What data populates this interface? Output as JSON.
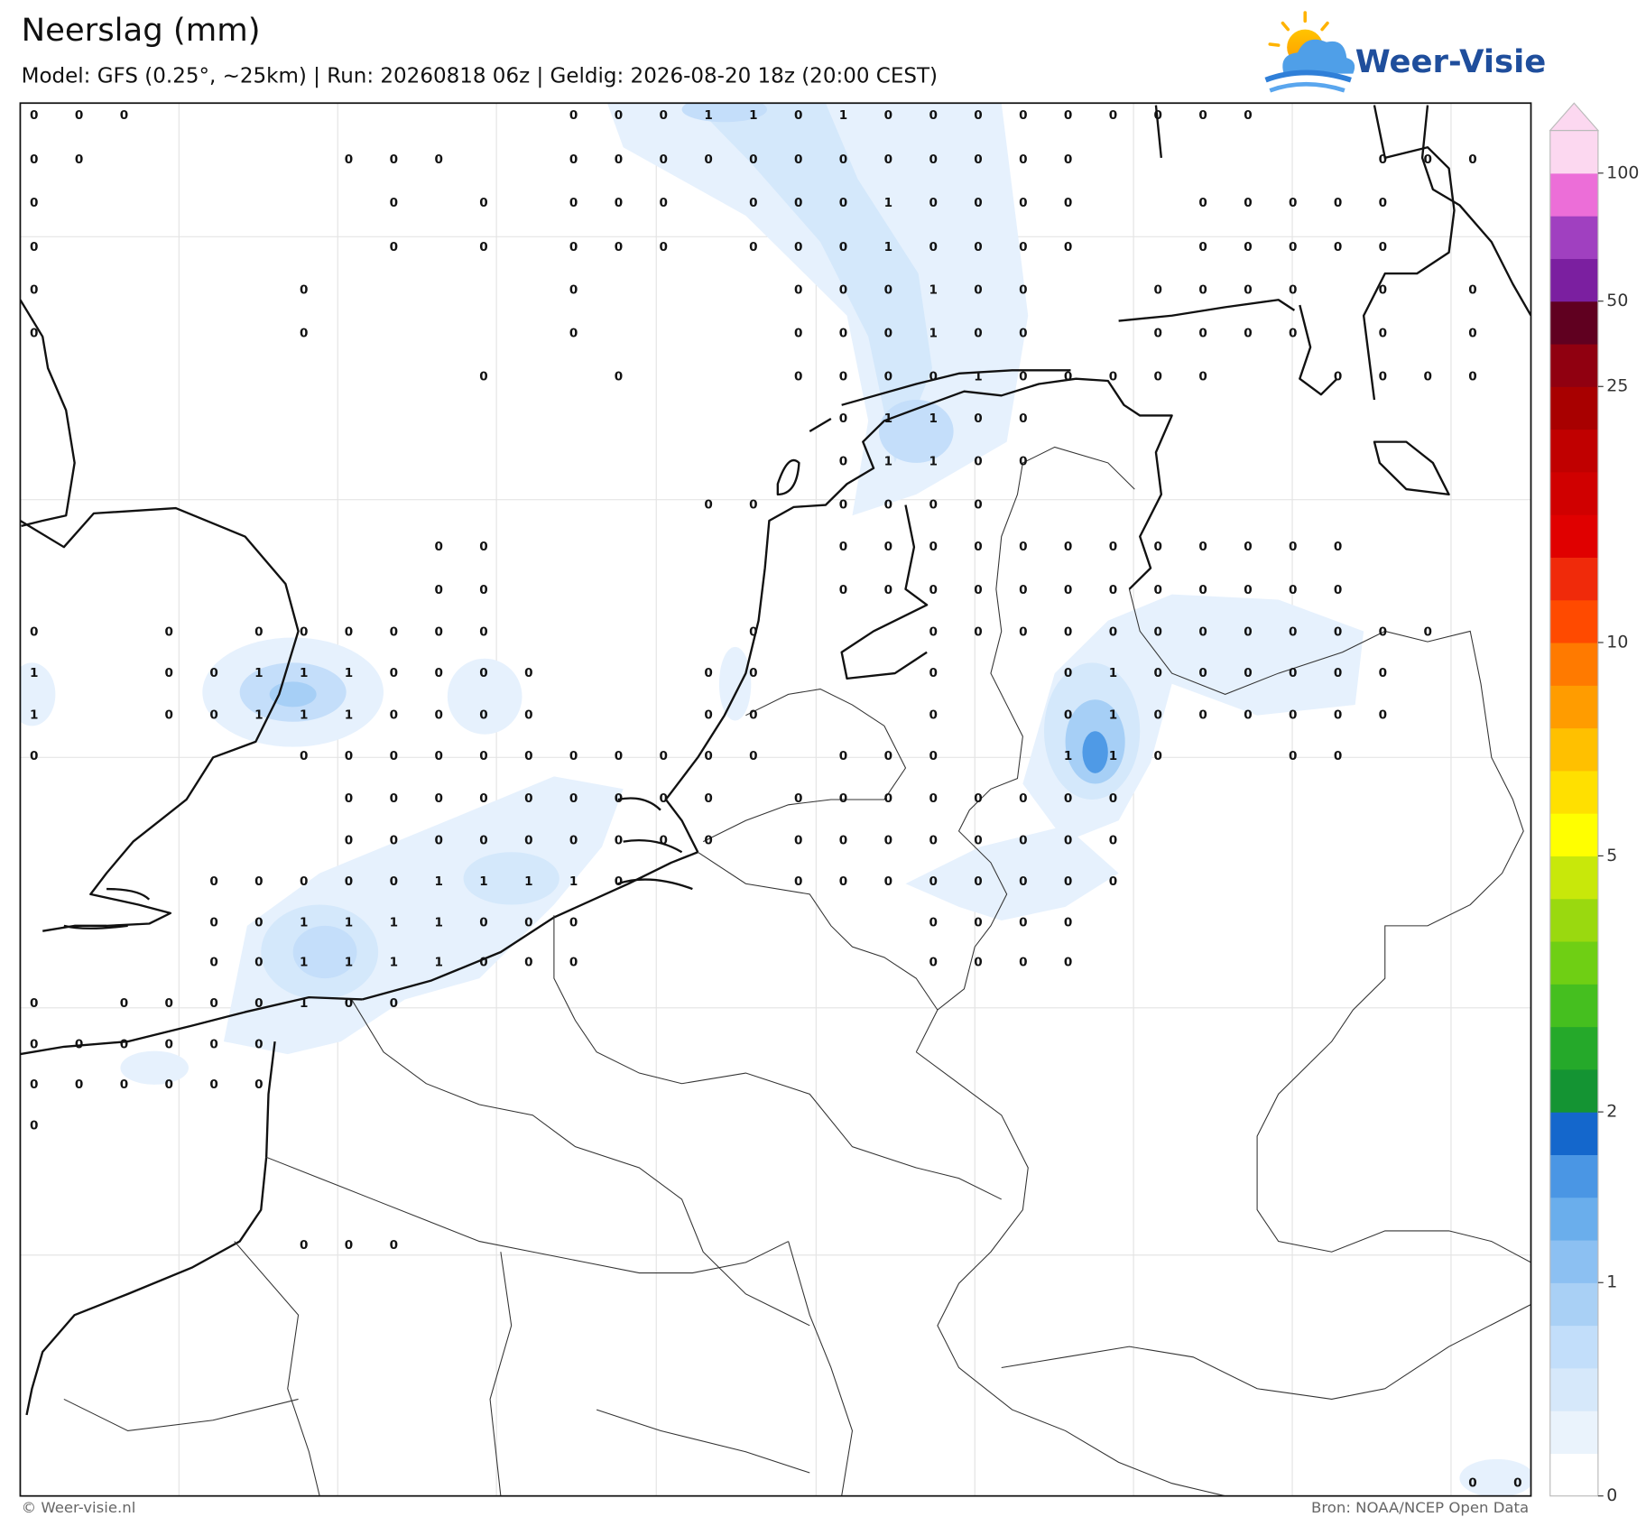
{
  "header": {
    "title": "Neerslag (mm)",
    "subtitle": "Model: GFS (0.25°, ~25km)  |  Run: 20260818 06z  |  Geldig: 2026-08-20 18z (20:00 CEST)",
    "logo": "Weer-Visie"
  },
  "legend": {
    "ticks": [
      0,
      1,
      2,
      5,
      10,
      25,
      50,
      100
    ]
  },
  "grid": {
    "rows": [
      [
        0,
        0,
        0,
        null,
        null,
        null,
        null,
        null,
        null,
        null,
        null,
        null,
        0,
        0,
        0,
        1,
        1,
        0,
        1,
        0,
        0,
        0,
        0,
        0,
        0,
        0,
        0,
        0,
        null,
        null,
        null,
        null,
        null,
        null
      ],
      [
        0,
        0,
        null,
        null,
        null,
        null,
        null,
        0,
        0,
        0,
        null,
        null,
        0,
        0,
        0,
        0,
        0,
        0,
        0,
        0,
        0,
        0,
        0,
        0,
        null,
        null,
        null,
        null,
        null,
        null,
        0,
        0,
        0,
        null
      ],
      [
        0,
        null,
        null,
        null,
        null,
        null,
        null,
        null,
        0,
        null,
        0,
        null,
        0,
        0,
        0,
        null,
        0,
        0,
        0,
        1,
        0,
        0,
        0,
        0,
        null,
        null,
        0,
        0,
        0,
        0,
        0,
        null,
        null,
        null
      ],
      [
        0,
        null,
        null,
        null,
        null,
        null,
        null,
        null,
        0,
        null,
        0,
        null,
        0,
        0,
        0,
        null,
        0,
        0,
        0,
        1,
        0,
        0,
        0,
        0,
        null,
        null,
        0,
        0,
        0,
        0,
        0,
        null,
        null,
        null
      ],
      [
        0,
        null,
        null,
        null,
        null,
        null,
        0,
        null,
        null,
        null,
        null,
        null,
        0,
        null,
        null,
        null,
        null,
        0,
        0,
        0,
        1,
        0,
        0,
        null,
        null,
        0,
        0,
        0,
        0,
        null,
        0,
        null,
        0,
        null
      ],
      [
        0,
        null,
        null,
        null,
        null,
        null,
        0,
        null,
        null,
        null,
        null,
        null,
        0,
        null,
        null,
        null,
        null,
        0,
        0,
        0,
        1,
        0,
        0,
        null,
        null,
        0,
        0,
        0,
        0,
        null,
        0,
        null,
        0,
        null
      ],
      [
        null,
        null,
        null,
        null,
        null,
        null,
        null,
        null,
        null,
        null,
        0,
        null,
        null,
        0,
        null,
        null,
        null,
        0,
        0,
        0,
        0,
        1,
        0,
        0,
        0,
        0,
        0,
        null,
        null,
        0,
        0,
        0,
        0,
        null
      ],
      [
        null,
        null,
        null,
        null,
        null,
        null,
        null,
        null,
        null,
        null,
        null,
        null,
        null,
        null,
        null,
        null,
        null,
        null,
        0,
        1,
        1,
        0,
        0,
        null,
        null,
        null,
        null,
        null,
        null,
        null,
        null,
        null,
        null,
        null
      ],
      [
        null,
        null,
        null,
        null,
        null,
        null,
        null,
        null,
        null,
        null,
        null,
        null,
        null,
        null,
        null,
        null,
        null,
        null,
        0,
        1,
        1,
        0,
        0,
        null,
        null,
        null,
        null,
        null,
        null,
        null,
        null,
        null,
        null,
        null
      ],
      [
        null,
        null,
        null,
        null,
        null,
        null,
        null,
        null,
        null,
        null,
        null,
        null,
        null,
        null,
        null,
        0,
        0,
        null,
        0,
        0,
        0,
        0,
        null,
        null,
        null,
        null,
        null,
        null,
        null,
        null,
        null,
        null,
        null,
        null
      ],
      [
        null,
        null,
        null,
        null,
        null,
        null,
        null,
        null,
        null,
        0,
        0,
        null,
        null,
        null,
        null,
        null,
        null,
        null,
        0,
        0,
        0,
        0,
        0,
        0,
        0,
        0,
        0,
        0,
        0,
        0,
        null,
        null,
        null,
        null
      ],
      [
        null,
        null,
        null,
        null,
        null,
        null,
        null,
        null,
        null,
        0,
        0,
        null,
        null,
        null,
        null,
        null,
        null,
        null,
        0,
        0,
        0,
        0,
        0,
        0,
        0,
        0,
        0,
        0,
        0,
        0,
        null,
        null,
        null,
        null
      ],
      [
        0,
        null,
        null,
        0,
        null,
        0,
        0,
        0,
        0,
        0,
        0,
        null,
        null,
        null,
        null,
        null,
        0,
        null,
        null,
        null,
        0,
        0,
        0,
        0,
        0,
        0,
        0,
        0,
        0,
        0,
        0,
        0,
        null,
        null
      ],
      [
        1,
        null,
        null,
        0,
        0,
        1,
        1,
        1,
        0,
        0,
        0,
        0,
        null,
        null,
        null,
        0,
        0,
        null,
        null,
        null,
        0,
        null,
        null,
        0,
        1,
        0,
        0,
        0,
        0,
        0,
        0,
        null,
        null,
        null
      ],
      [
        1,
        null,
        null,
        0,
        0,
        1,
        1,
        1,
        0,
        0,
        0,
        0,
        null,
        null,
        null,
        0,
        0,
        null,
        null,
        null,
        0,
        null,
        null,
        0,
        1,
        0,
        0,
        0,
        0,
        0,
        0,
        null,
        null,
        null
      ],
      [
        0,
        null,
        null,
        null,
        null,
        null,
        0,
        0,
        0,
        0,
        0,
        0,
        0,
        0,
        0,
        0,
        0,
        null,
        0,
        0,
        0,
        null,
        null,
        1,
        1,
        0,
        null,
        null,
        0,
        0,
        null,
        null,
        null,
        null
      ],
      [
        null,
        null,
        null,
        null,
        null,
        null,
        null,
        0,
        0,
        0,
        0,
        0,
        0,
        0,
        0,
        0,
        null,
        0,
        0,
        0,
        0,
        0,
        0,
        0,
        0,
        null,
        null,
        null,
        null,
        null,
        null,
        null,
        null,
        null
      ],
      [
        null,
        null,
        null,
        null,
        null,
        null,
        null,
        0,
        0,
        0,
        0,
        0,
        0,
        0,
        0,
        0,
        null,
        0,
        0,
        0,
        0,
        0,
        0,
        0,
        0,
        null,
        null,
        null,
        null,
        null,
        null,
        null,
        null,
        null
      ],
      [
        null,
        null,
        null,
        null,
        0,
        0,
        0,
        0,
        0,
        1,
        1,
        1,
        1,
        0,
        null,
        null,
        null,
        0,
        0,
        0,
        0,
        0,
        0,
        0,
        0,
        null,
        null,
        null,
        null,
        null,
        null,
        null,
        null,
        null
      ],
      [
        null,
        null,
        null,
        null,
        0,
        0,
        1,
        1,
        1,
        1,
        0,
        0,
        0,
        null,
        null,
        null,
        null,
        null,
        null,
        null,
        0,
        0,
        0,
        0,
        null,
        null,
        null,
        null,
        null,
        null,
        null,
        null,
        null,
        null
      ],
      [
        null,
        null,
        null,
        null,
        0,
        0,
        1,
        1,
        1,
        1,
        0,
        0,
        0,
        null,
        null,
        null,
        null,
        null,
        null,
        null,
        0,
        0,
        0,
        0,
        null,
        null,
        null,
        null,
        null,
        null,
        null,
        null,
        null,
        null
      ],
      [
        0,
        null,
        0,
        0,
        0,
        0,
        1,
        0,
        0,
        null,
        null,
        null,
        null,
        null,
        null,
        null,
        null,
        null,
        null,
        null,
        null,
        null,
        null,
        null,
        null,
        null,
        null,
        null,
        null,
        null,
        null,
        null,
        null,
        null
      ],
      [
        0,
        0,
        0,
        0,
        0,
        0,
        null,
        null,
        null,
        null,
        null,
        null,
        null,
        null,
        null,
        null,
        null,
        null,
        null,
        null,
        null,
        null,
        null,
        null,
        null,
        null,
        null,
        null,
        null,
        null,
        null,
        null,
        null,
        null
      ],
      [
        0,
        0,
        0,
        0,
        0,
        0,
        null,
        null,
        null,
        null,
        null,
        null,
        null,
        null,
        null,
        null,
        null,
        null,
        null,
        null,
        null,
        null,
        null,
        null,
        null,
        null,
        null,
        null,
        null,
        null,
        null,
        null,
        null,
        null
      ],
      [
        0,
        null,
        null,
        null,
        null,
        null,
        null,
        null,
        null,
        null,
        null,
        null,
        null,
        null,
        null,
        null,
        null,
        null,
        null,
        null,
        null,
        null,
        null,
        null,
        null,
        null,
        null,
        null,
        null,
        null,
        null,
        null,
        null,
        null
      ],
      [
        null,
        null,
        null,
        null,
        null,
        null,
        0,
        0,
        0,
        null,
        null,
        null,
        null,
        null,
        null,
        null,
        null,
        null,
        null,
        null,
        null,
        null,
        null,
        null,
        null,
        null,
        null,
        null,
        null,
        null,
        null,
        null,
        null,
        null
      ],
      [
        null,
        null,
        null,
        null,
        null,
        null,
        null,
        null,
        null,
        null,
        null,
        null,
        null,
        null,
        null,
        null,
        null,
        null,
        null,
        null,
        null,
        null,
        null,
        null,
        null,
        null,
        null,
        null,
        null,
        null,
        null,
        null,
        0,
        0
      ]
    ]
  },
  "footer": {
    "left": "© Weer-visie.nl",
    "right": "Bron: NOAA/NCEP Open Data"
  }
}
